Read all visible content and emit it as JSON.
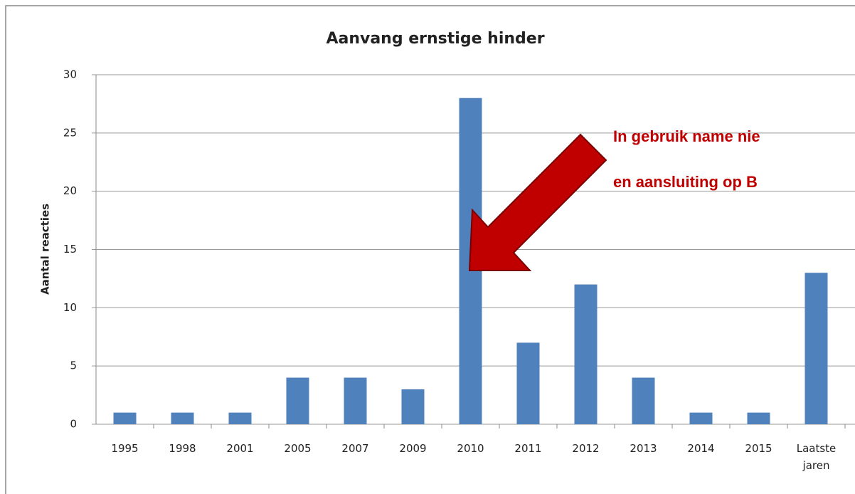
{
  "chart_data": {
    "type": "bar",
    "title": "Aanvang ernstige hinder",
    "ylabel": "Aantal reacties",
    "categories": [
      "1995",
      "1998",
      "2001",
      "2005",
      "2007",
      "2009",
      "2010",
      "2011",
      "2012",
      "2013",
      "2014",
      "2015",
      "Laatste jaren"
    ],
    "values": [
      1,
      1,
      1,
      4,
      4,
      3,
      28,
      7,
      12,
      4,
      1,
      1,
      13
    ],
    "color": "#4f81bd",
    "ylim": [
      0,
      30
    ],
    "yticks": [
      0,
      5,
      10,
      15,
      20,
      25,
      30
    ],
    "grid": true,
    "annotations": [
      "In gebruik name nie",
      "en aansluiting op B"
    ]
  }
}
